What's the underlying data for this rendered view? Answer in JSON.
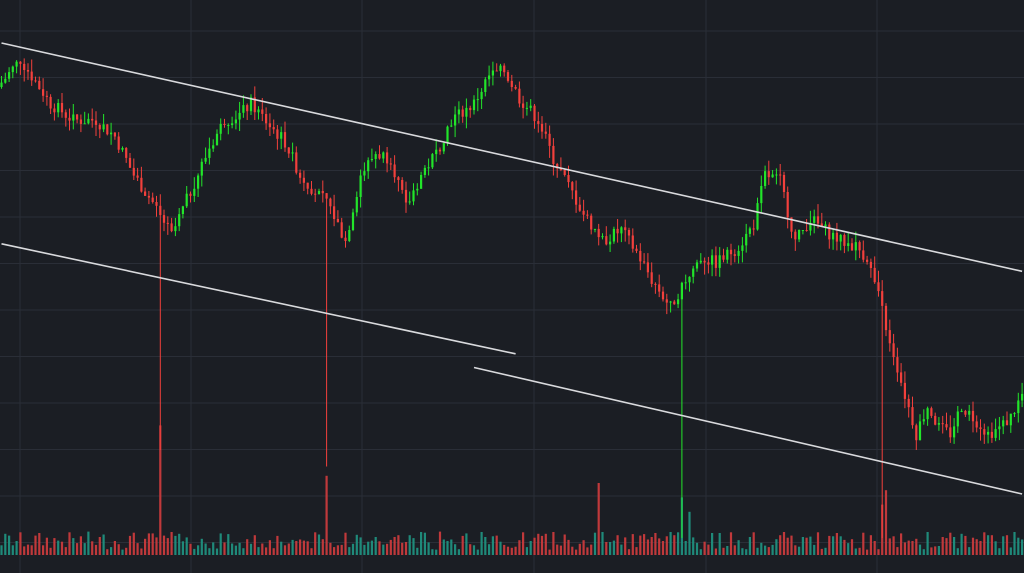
{
  "colors": {
    "background": "#1b1e24",
    "grid": "#2a2e37",
    "up": "#22e52a",
    "down": "#f2403c",
    "volume_up": "#1f8a7a",
    "volume_down": "#c0393b",
    "trendline": "#d9dadd"
  },
  "chart_data": {
    "type": "candlestick",
    "grid": true,
    "ylim": [
      0,
      100
    ],
    "volume_ylim": [
      0,
      100
    ],
    "trendlines": [
      {
        "name": "channel-upper",
        "x": [
          0,
          270
        ],
        "y": [
          94,
          52.5
        ]
      },
      {
        "name": "channel-lower-a",
        "x": [
          0,
          136
        ],
        "y": [
          57.5,
          37.5
        ]
      },
      {
        "name": "channel-lower-b",
        "x": [
          125,
          270
        ],
        "y": [
          35,
          12
        ]
      }
    ],
    "candles": [],
    "volume": []
  }
}
